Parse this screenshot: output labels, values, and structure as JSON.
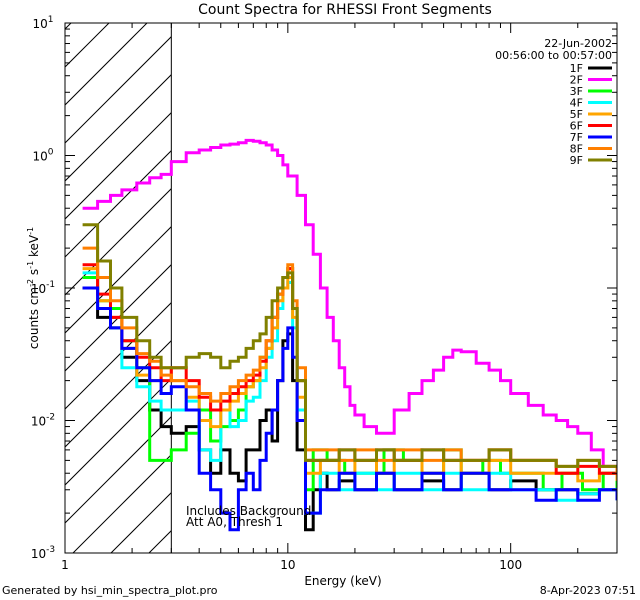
{
  "chart_data": {
    "type": "line",
    "title": "Count Spectra for RHESSI Front Segments",
    "xlabel": "Energy (keV)",
    "ylabel": "counts cm",
    "ylabel_sup1": "-2",
    "ylabel_mid": " s",
    "ylabel_sup2": "-1",
    "ylabel_end": " keV",
    "ylabel_sup3": "-1",
    "xscale": "log",
    "yscale": "log",
    "xlim": [
      1,
      300
    ],
    "ylim": [
      0.001,
      10
    ],
    "x_ticks": [
      {
        "v": 1,
        "label": "1"
      },
      {
        "v": 10,
        "label": "10"
      },
      {
        "v": 100,
        "label": "100"
      }
    ],
    "y_ticks": [
      {
        "v": 0.001,
        "base": "10",
        "exp": "-3"
      },
      {
        "v": 0.01,
        "base": "10",
        "exp": "-2"
      },
      {
        "v": 0.1,
        "base": "10",
        "exp": "-1"
      },
      {
        "v": 1,
        "base": "10",
        "exp": "0"
      },
      {
        "v": 10,
        "base": "10",
        "exp": "1"
      }
    ],
    "date": "22-Jun-2002",
    "time_range": "00:56:00 to 00:57:00",
    "annotation_line1": "Includes Background",
    "annotation_line2": "Att A0, Thresh 1",
    "hatch_region_kev": [
      1,
      3
    ],
    "series": [
      {
        "name": "1F",
        "color": "#000000",
        "x": [
          1.2,
          1.4,
          1.6,
          1.8,
          2.1,
          2.4,
          2.7,
          3.0,
          3.5,
          4.0,
          4.5,
          5.0,
          5.5,
          6.0,
          6.5,
          7.0,
          7.5,
          8.0,
          8.5,
          9.0,
          9.5,
          10.0,
          10.5,
          11,
          12,
          13,
          14,
          15,
          17,
          20,
          25,
          30,
          40,
          50,
          60,
          80,
          100,
          130,
          160,
          200,
          250,
          300
        ],
        "y": [
          0.1,
          0.06,
          0.05,
          0.03,
          0.02,
          0.012,
          0.009,
          0.008,
          0.009,
          0.006,
          0.004,
          0.006,
          0.004,
          0.0035,
          0.006,
          0.006,
          0.01,
          0.012,
          0.007,
          0.02,
          0.04,
          0.045,
          0.02,
          0.006,
          0.0015,
          0.003,
          0.004,
          0.003,
          0.0035,
          0.003,
          0.004,
          0.003,
          0.0035,
          0.003,
          0.004,
          0.003,
          0.0035,
          0.003,
          0.003,
          0.0028,
          0.003,
          0.0025
        ]
      },
      {
        "name": "2F",
        "color": "#ff00ff",
        "x": [
          1.2,
          1.4,
          1.6,
          1.8,
          2.1,
          2.4,
          2.7,
          3.0,
          3.5,
          4.0,
          4.5,
          5.0,
          5.5,
          6.0,
          6.5,
          7.0,
          7.5,
          8.0,
          8.5,
          9.0,
          9.5,
          10,
          11,
          12,
          13,
          14,
          15,
          16,
          17,
          18,
          19,
          20,
          22,
          25,
          30,
          35,
          40,
          45,
          50,
          55,
          60,
          70,
          80,
          90,
          100,
          120,
          140,
          160,
          180,
          200,
          230,
          260,
          300
        ],
        "y": [
          0.4,
          0.45,
          0.5,
          0.55,
          0.62,
          0.68,
          0.72,
          0.9,
          1.05,
          1.1,
          1.15,
          1.2,
          1.22,
          1.25,
          1.3,
          1.28,
          1.25,
          1.2,
          1.1,
          1.0,
          0.85,
          0.7,
          0.5,
          0.3,
          0.18,
          0.1,
          0.06,
          0.04,
          0.025,
          0.018,
          0.013,
          0.011,
          0.009,
          0.008,
          0.012,
          0.016,
          0.02,
          0.024,
          0.03,
          0.034,
          0.033,
          0.027,
          0.024,
          0.02,
          0.016,
          0.013,
          0.011,
          0.01,
          0.009,
          0.008,
          0.006,
          0.0045,
          0.004
        ]
      },
      {
        "name": "3F",
        "color": "#00ff00",
        "x": [
          1.2,
          1.4,
          1.6,
          1.8,
          2.1,
          2.4,
          2.7,
          3.0,
          3.5,
          4.0,
          4.5,
          5.0,
          5.5,
          6.0,
          6.5,
          7.0,
          7.5,
          8.0,
          8.5,
          9.0,
          9.5,
          10.0,
          10.5,
          11,
          12,
          13,
          15,
          18,
          22,
          27,
          33,
          40,
          50,
          60,
          75,
          90,
          110,
          140,
          170,
          210,
          260,
          300
        ],
        "y": [
          0.12,
          0.08,
          0.07,
          0.04,
          0.025,
          0.005,
          0.005,
          0.006,
          0.008,
          0.012,
          0.007,
          0.009,
          0.01,
          0.012,
          0.018,
          0.02,
          0.03,
          0.035,
          0.06,
          0.09,
          0.12,
          0.14,
          0.07,
          0.02,
          0.003,
          0.006,
          0.005,
          0.004,
          0.004,
          0.006,
          0.005,
          0.004,
          0.006,
          0.004,
          0.005,
          0.004,
          0.004,
          0.003,
          0.004,
          0.003,
          0.004,
          0.003
        ]
      },
      {
        "name": "4F",
        "color": "#00ffff",
        "x": [
          1.2,
          1.4,
          1.6,
          1.8,
          2.1,
          2.4,
          2.7,
          3.0,
          3.5,
          4.0,
          4.5,
          5.0,
          5.5,
          6.0,
          6.5,
          7.0,
          7.5,
          8.0,
          8.5,
          9.0,
          9.5,
          10.0,
          10.5,
          11,
          12,
          14,
          17,
          20,
          25,
          30,
          40,
          50,
          60,
          80,
          100,
          130,
          160,
          200,
          250,
          300
        ],
        "y": [
          0.13,
          0.07,
          0.05,
          0.025,
          0.018,
          0.014,
          0.012,
          0.012,
          0.014,
          0.006,
          0.005,
          0.012,
          0.009,
          0.01,
          0.014,
          0.015,
          0.02,
          0.03,
          0.04,
          0.07,
          0.1,
          0.11,
          0.05,
          0.012,
          0.002,
          0.004,
          0.003,
          0.004,
          0.003,
          0.004,
          0.003,
          0.004,
          0.003,
          0.004,
          0.003,
          0.003,
          0.0025,
          0.0028,
          0.003,
          0.0025
        ]
      },
      {
        "name": "5F",
        "color": "#ffa500",
        "x": [
          1.2,
          1.4,
          1.6,
          1.8,
          2.1,
          2.4,
          2.7,
          3.0,
          3.5,
          4.0,
          4.5,
          5.0,
          5.5,
          6.0,
          6.5,
          7.0,
          7.5,
          8.0,
          8.5,
          9.0,
          9.5,
          10.0,
          10.5,
          11,
          12,
          14,
          17,
          20,
          25,
          30,
          40,
          50,
          60,
          80,
          100,
          130,
          160,
          200,
          250,
          300
        ],
        "y": [
          0.14,
          0.08,
          0.06,
          0.035,
          0.022,
          0.02,
          0.025,
          0.02,
          0.015,
          0.01,
          0.009,
          0.012,
          0.014,
          0.016,
          0.018,
          0.02,
          0.025,
          0.035,
          0.05,
          0.08,
          0.1,
          0.12,
          0.06,
          0.015,
          0.004,
          0.005,
          0.004,
          0.005,
          0.004,
          0.005,
          0.004,
          0.005,
          0.004,
          0.005,
          0.004,
          0.004,
          0.004,
          0.0035,
          0.004,
          0.0035
        ]
      },
      {
        "name": "6F",
        "color": "#ff0000",
        "x": [
          1.2,
          1.4,
          1.6,
          1.8,
          2.1,
          2.4,
          2.7,
          3.0,
          3.5,
          4.0,
          4.5,
          5.0,
          5.5,
          6.0,
          6.5,
          7.0,
          7.5,
          8.0,
          8.5,
          9.0,
          9.5,
          10.0,
          10.5,
          11,
          12,
          14,
          17,
          20,
          25,
          30,
          40,
          50,
          60,
          80,
          100,
          130,
          160,
          200,
          250,
          300
        ],
        "y": [
          0.15,
          0.09,
          0.06,
          0.04,
          0.03,
          0.025,
          0.02,
          0.025,
          0.02,
          0.015,
          0.012,
          0.014,
          0.016,
          0.018,
          0.02,
          0.022,
          0.028,
          0.04,
          0.06,
          0.09,
          0.12,
          0.14,
          0.07,
          0.02,
          0.005,
          0.005,
          0.006,
          0.005,
          0.006,
          0.005,
          0.006,
          0.005,
          0.005,
          0.006,
          0.005,
          0.005,
          0.004,
          0.0045,
          0.004,
          0.004
        ]
      },
      {
        "name": "7F",
        "color": "#0000ff",
        "x": [
          1.2,
          1.4,
          1.6,
          1.8,
          2.1,
          2.4,
          2.7,
          3.0,
          3.5,
          4.0,
          4.5,
          5.0,
          5.5,
          6.0,
          6.5,
          7.0,
          7.5,
          8.0,
          8.5,
          9.0,
          9.5,
          10.0,
          10.5,
          11,
          12,
          14,
          17,
          20,
          25,
          30,
          40,
          50,
          60,
          80,
          100,
          130,
          160,
          200,
          250,
          300
        ],
        "y": [
          0.1,
          0.07,
          0.05,
          0.035,
          0.025,
          0.02,
          0.016,
          0.018,
          0.012,
          0.004,
          0.003,
          0.002,
          0.0015,
          0.003,
          0.004,
          0.003,
          0.005,
          0.008,
          0.012,
          0.02,
          0.035,
          0.05,
          0.03,
          0.01,
          0.002,
          0.003,
          0.004,
          0.003,
          0.004,
          0.003,
          0.004,
          0.003,
          0.004,
          0.003,
          0.003,
          0.0025,
          0.003,
          0.0025,
          0.003,
          0.0025
        ]
      },
      {
        "name": "8F",
        "color": "#ff7f00",
        "x": [
          1.2,
          1.4,
          1.6,
          1.8,
          2.1,
          2.4,
          2.7,
          3.0,
          3.5,
          4.0,
          4.5,
          5.0,
          5.5,
          6.0,
          6.5,
          7.0,
          7.5,
          8.0,
          8.5,
          9.0,
          9.5,
          10.0,
          10.5,
          11,
          12,
          14,
          17,
          20,
          25,
          30,
          40,
          50,
          60,
          80,
          100,
          130,
          160,
          200,
          250,
          300
        ],
        "y": [
          0.2,
          0.12,
          0.08,
          0.05,
          0.032,
          0.028,
          0.022,
          0.02,
          0.018,
          0.016,
          0.014,
          0.016,
          0.018,
          0.02,
          0.022,
          0.024,
          0.03,
          0.04,
          0.06,
          0.09,
          0.12,
          0.15,
          0.08,
          0.025,
          0.006,
          0.006,
          0.005,
          0.006,
          0.005,
          0.006,
          0.005,
          0.006,
          0.005,
          0.006,
          0.005,
          0.005,
          0.0045,
          0.005,
          0.0045,
          0.004
        ]
      },
      {
        "name": "9F",
        "color": "#808000",
        "x": [
          1.2,
          1.4,
          1.6,
          1.8,
          2.1,
          2.4,
          2.7,
          3.0,
          3.5,
          4.0,
          4.5,
          5.0,
          5.5,
          6.0,
          6.5,
          7.0,
          7.5,
          8.0,
          8.5,
          9.0,
          9.5,
          10.0,
          10.5,
          11,
          12,
          14,
          17,
          20,
          25,
          30,
          40,
          50,
          60,
          80,
          100,
          130,
          160,
          200,
          250,
          300
        ],
        "y": [
          0.3,
          0.16,
          0.1,
          0.06,
          0.04,
          0.03,
          0.025,
          0.025,
          0.03,
          0.032,
          0.03,
          0.025,
          0.028,
          0.03,
          0.035,
          0.04,
          0.045,
          0.06,
          0.08,
          0.1,
          0.12,
          0.13,
          0.07,
          0.02,
          0.005,
          0.005,
          0.006,
          0.005,
          0.006,
          0.005,
          0.006,
          0.005,
          0.005,
          0.006,
          0.005,
          0.005,
          0.0045,
          0.005,
          0.0045,
          0.0045
        ]
      }
    ]
  },
  "footer": {
    "left": "Generated by hsi_min_spectra_plot.pro",
    "right": "8-Apr-2023 07:51"
  },
  "colors": {
    "axis": "#000000",
    "background": "#ffffff"
  }
}
